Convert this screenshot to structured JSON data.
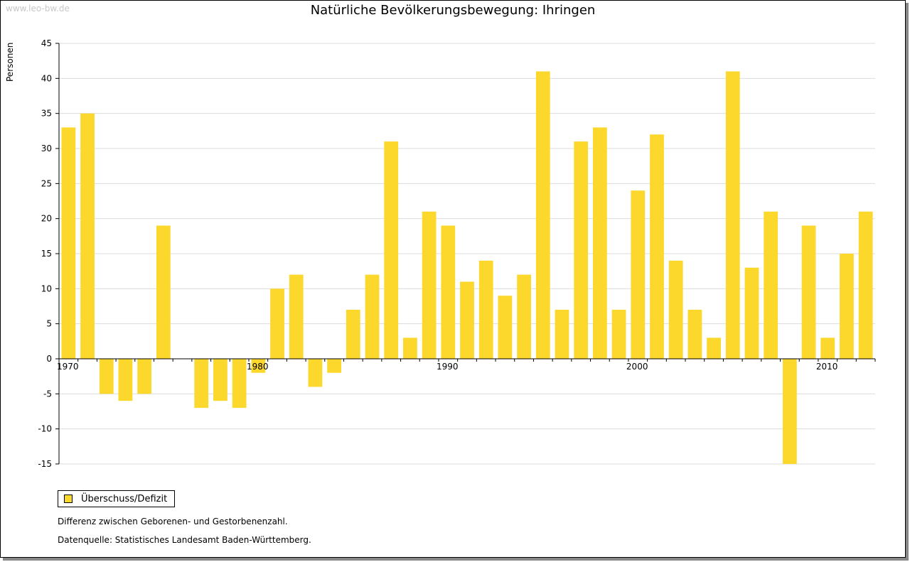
{
  "watermark": "www.leo-bw.de",
  "chart_data": {
    "type": "bar",
    "title": "Natürliche Bevölkerungsbewegung: Ihringen",
    "ylabel": "Personen",
    "xlabel": "",
    "ylim": [
      -15,
      45
    ],
    "yticks": [
      45,
      40,
      35,
      30,
      25,
      20,
      15,
      10,
      5,
      0,
      -5,
      -10,
      -15
    ],
    "xtick_labels": [
      "1970",
      "1980",
      "1990",
      "2000",
      "2010"
    ],
    "grid": true,
    "legend_position": "bottom-left",
    "series": [
      {
        "name": "Überschuss/Defizit",
        "color": "#fcd72c",
        "x": [
          1970,
          1971,
          1972,
          1973,
          1974,
          1975,
          1976,
          1977,
          1978,
          1979,
          1980,
          1981,
          1982,
          1983,
          1984,
          1985,
          1986,
          1987,
          1988,
          1989,
          1990,
          1991,
          1992,
          1993,
          1994,
          1995,
          1996,
          1997,
          1998,
          1999,
          2000,
          2001,
          2002,
          2003,
          2004,
          2005,
          2006,
          2007,
          2008,
          2009,
          2010,
          2011,
          2012
        ],
        "values": [
          33,
          35,
          -5,
          -6,
          -5,
          19,
          0,
          -7,
          -6,
          -7,
          -2,
          10,
          12,
          -4,
          -2,
          7,
          12,
          31,
          3,
          21,
          19,
          11,
          14,
          9,
          12,
          41,
          7,
          31,
          33,
          7,
          24,
          32,
          14,
          7,
          3,
          41,
          13,
          21,
          -15,
          19,
          3,
          15,
          21
        ]
      }
    ]
  },
  "legend_label": "Überschuss/Defizit",
  "notes": {
    "line1": "Differenz zwischen Geborenen- und Gestorbenenzahl.",
    "line2": "Datenquelle: Statistisches Landesamt Baden-Württemberg."
  }
}
